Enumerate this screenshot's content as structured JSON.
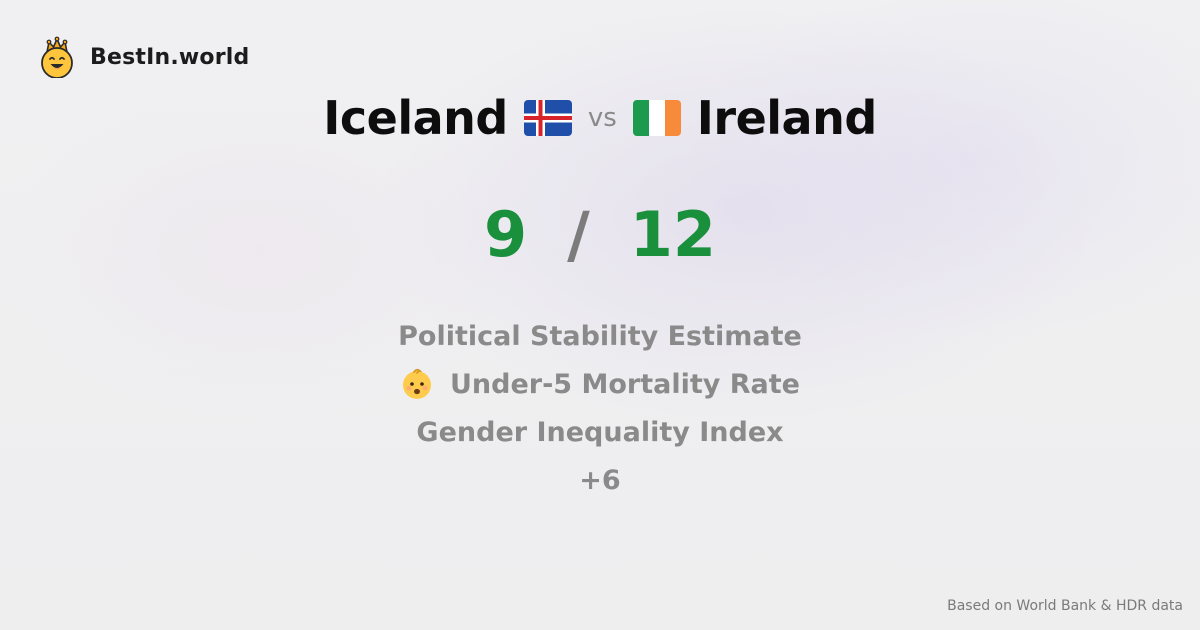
{
  "brand": {
    "name": "BestIn.world",
    "logo_icon": "crown-smiley-icon"
  },
  "comparison": {
    "country_a": {
      "name": "Iceland",
      "flag_icon": "iceland-flag-icon"
    },
    "vs_label": "vs",
    "country_b": {
      "name": "Ireland",
      "flag_icon": "ireland-flag-icon"
    }
  },
  "scores": {
    "a": "9",
    "separator": "/",
    "b": "12"
  },
  "metrics": [
    {
      "label": "Political Stability Estimate"
    },
    {
      "label": "Under-5 Mortality Rate",
      "icon": "baby-icon"
    },
    {
      "label": "Gender Inequality Index"
    },
    {
      "label": "+6"
    }
  ],
  "footer": {
    "source": "Based on World Bank & HDR data"
  },
  "colors": {
    "score_green": "#1a8f3c",
    "muted_gray": "#8a8a8a",
    "title_black": "#0d0d0d"
  }
}
